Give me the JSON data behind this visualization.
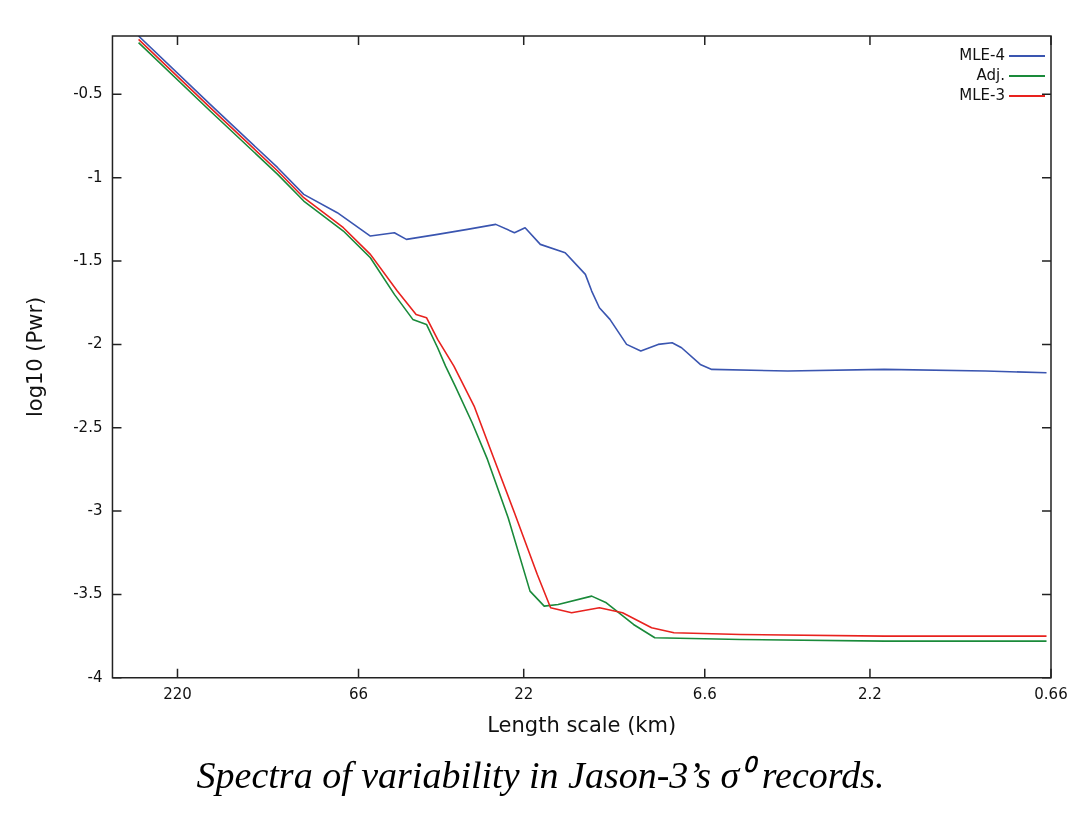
{
  "chart_data": {
    "type": "line",
    "xlabel": "Length scale (km)",
    "ylabel": "log10 (Pwr)",
    "log": "x",
    "xlim": [
      339,
      0.66
    ],
    "xticks": [
      220,
      66,
      22,
      6.6,
      2.2,
      0.66
    ],
    "ylim": [
      -4,
      -0.15
    ],
    "yticks": [
      -0.5,
      -1,
      -1.5,
      -2,
      -2.5,
      -3,
      -3.5,
      -4
    ],
    "legend": "top right",
    "marker": "none",
    "line_style": "solid",
    "annotations": [
      "Spectra of variability in Jason-3’s σ⁰ records."
    ],
    "series": [
      {
        "name": "MLE-4",
        "color": "#3a55b0",
        "x": [
          285,
          177,
          113,
          95,
          76,
          61,
          52,
          48,
          39,
          32,
          26.5,
          23.4,
          21.8,
          19.7,
          16.7,
          14.6,
          14.0,
          13.3,
          12.4,
          11.1,
          10.1,
          9.0,
          8.2,
          7.7,
          6.8,
          6.3,
          3.8,
          2.0,
          1.02,
          0.68
        ],
        "values": [
          -0.15,
          -0.56,
          -0.94,
          -1.1,
          -1.21,
          -1.35,
          -1.33,
          -1.37,
          -1.34,
          -1.31,
          -1.28,
          -1.33,
          -1.3,
          -1.4,
          -1.45,
          -1.58,
          -1.68,
          -1.78,
          -1.85,
          -2.0,
          -2.04,
          -2.0,
          -1.99,
          -2.02,
          -2.12,
          -2.15,
          -2.16,
          -2.15,
          -2.16,
          -2.17
        ]
      },
      {
        "name": "Adj.",
        "color": "#1a8a3a",
        "x": [
          285,
          177,
          113,
          95,
          73,
          61,
          52,
          46,
          42,
          39,
          37,
          34.7,
          31,
          28,
          24.4,
          21.1,
          19.2,
          17.5,
          14.0,
          12.7,
          10.6,
          9.2,
          5.2,
          2.0,
          0.68
        ],
        "values": [
          -0.19,
          -0.6,
          -0.98,
          -1.14,
          -1.32,
          -1.48,
          -1.7,
          -1.85,
          -1.88,
          -2.02,
          -2.13,
          -2.25,
          -2.47,
          -2.69,
          -3.04,
          -3.48,
          -3.57,
          -3.56,
          -3.51,
          -3.55,
          -3.68,
          -3.76,
          -3.77,
          -3.78,
          -3.78
        ]
      },
      {
        "name": "MLE-3",
        "color": "#e8221e",
        "x": [
          285,
          177,
          113,
          95,
          73,
          61,
          51,
          45,
          42,
          39,
          35,
          30.6,
          27,
          23.4,
          20.1,
          18.4,
          16.0,
          13.3,
          11.4,
          9.4,
          8.1,
          5.2,
          2.0,
          0.68
        ],
        "values": [
          -0.17,
          -0.58,
          -0.96,
          -1.12,
          -1.3,
          -1.46,
          -1.68,
          -1.82,
          -1.84,
          -1.97,
          -2.13,
          -2.37,
          -2.67,
          -3.01,
          -3.38,
          -3.58,
          -3.61,
          -3.58,
          -3.61,
          -3.7,
          -3.73,
          -3.74,
          -3.75,
          -3.75
        ]
      }
    ]
  }
}
